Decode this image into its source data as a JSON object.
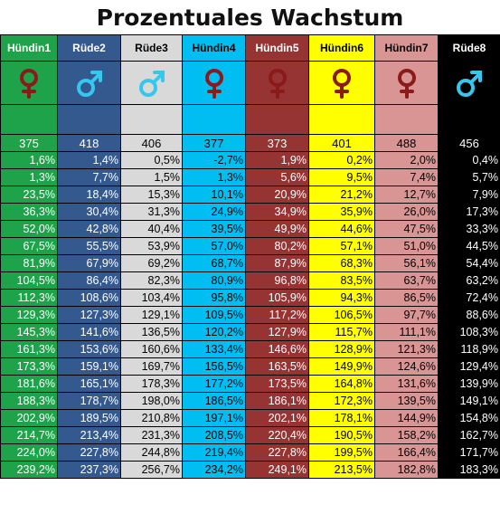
{
  "title": "Prozentuales Wachstum",
  "columns": [
    {
      "name": "Hündin1",
      "sex": "female",
      "bg": "#1fa34a",
      "fg": "#ffffff",
      "symbol_color": "#8b1a1a",
      "start": "375"
    },
    {
      "name": "Rüde2",
      "sex": "male",
      "bg": "#34598f",
      "fg": "#ffffff",
      "symbol_color": "#35c7ee",
      "start": "418"
    },
    {
      "name": "Rüde3",
      "sex": "male",
      "bg": "#d9d9d9",
      "fg": "#000000",
      "symbol_color": "#35c7ee",
      "start": "406"
    },
    {
      "name": "Hündin4",
      "sex": "female",
      "bg": "#00bdf2",
      "fg": "#000000",
      "symbol_color": "#8b1a1a",
      "start": "377"
    },
    {
      "name": "Hündin5",
      "sex": "female",
      "bg": "#963333",
      "fg": "#ffffff",
      "symbol_color": "#8b1a1a",
      "start": "373"
    },
    {
      "name": "Hündin6",
      "sex": "female",
      "bg": "#ffff00",
      "fg": "#000000",
      "symbol_color": "#8b1a1a",
      "start": "401"
    },
    {
      "name": "Hündin7",
      "sex": "female",
      "bg": "#d99594",
      "fg": "#000000",
      "symbol_color": "#8b1a1a",
      "start": "488"
    },
    {
      "name": "Rüde8",
      "sex": "male",
      "bg": "#000000",
      "fg": "#ffffff",
      "symbol_color": "#35c7ee",
      "start": "456"
    }
  ],
  "rows": [
    [
      "1,6%",
      "1,4%",
      "0,5%",
      "-2,7%",
      "1,9%",
      "0,2%",
      "2,0%",
      "0,4%"
    ],
    [
      "1,3%",
      "7,7%",
      "1,5%",
      "1,3%",
      "5,6%",
      "9,5%",
      "7,4%",
      "5,7%"
    ],
    [
      "23,5%",
      "18,4%",
      "15,3%",
      "10,1%",
      "20,9%",
      "21,2%",
      "12,7%",
      "7,9%"
    ],
    [
      "36,3%",
      "30,4%",
      "31,3%",
      "24,9%",
      "34,9%",
      "35,9%",
      "26,0%",
      "17,3%"
    ],
    [
      "52,0%",
      "42,8%",
      "40,4%",
      "39,5%",
      "49,9%",
      "44,6%",
      "47,5%",
      "33,3%"
    ],
    [
      "67,5%",
      "55,5%",
      "53,9%",
      "57,0%",
      "80,2%",
      "57,1%",
      "51,0%",
      "44,5%"
    ],
    [
      "81,9%",
      "67,9%",
      "69,2%",
      "68,7%",
      "87,9%",
      "68,3%",
      "56,1%",
      "54,4%"
    ],
    [
      "104,5%",
      "86,4%",
      "82,3%",
      "80,9%",
      "96,8%",
      "83,5%",
      "63,7%",
      "63,2%"
    ],
    [
      "112,3%",
      "108,6%",
      "103,4%",
      "95,8%",
      "105,9%",
      "94,3%",
      "86,5%",
      "72,4%"
    ],
    [
      "129,3%",
      "127,3%",
      "129,1%",
      "109,5%",
      "117,2%",
      "106,5%",
      "97,7%",
      "88,6%"
    ],
    [
      "145,3%",
      "141,6%",
      "136,5%",
      "120,2%",
      "127,9%",
      "115,7%",
      "111,1%",
      "108,3%"
    ],
    [
      "161,3%",
      "153,6%",
      "160,6%",
      "133,4%",
      "146,6%",
      "128,9%",
      "121,3%",
      "118,9%"
    ],
    [
      "173,3%",
      "159,1%",
      "169,7%",
      "156,5%",
      "163,5%",
      "149,9%",
      "124,6%",
      "129,4%"
    ],
    [
      "181,6%",
      "165,1%",
      "178,3%",
      "177,2%",
      "173,5%",
      "164,8%",
      "131,6%",
      "139,9%"
    ],
    [
      "188,3%",
      "178,7%",
      "198,0%",
      "186,5%",
      "186,1%",
      "172,3%",
      "139,5%",
      "149,1%"
    ],
    [
      "202,9%",
      "189,5%",
      "210,8%",
      "197,1%",
      "202,1%",
      "178,1%",
      "144,9%",
      "154,8%"
    ],
    [
      "214,7%",
      "213,4%",
      "231,3%",
      "208,5%",
      "220,4%",
      "190,5%",
      "158,2%",
      "162,7%"
    ],
    [
      "224,0%",
      "227,8%",
      "244,8%",
      "219,4%",
      "227,8%",
      "199,5%",
      "166,4%",
      "171,7%"
    ],
    [
      "239,2%",
      "237,3%",
      "256,7%",
      "234,2%",
      "249,1%",
      "213,5%",
      "182,8%",
      "183,3%"
    ]
  ]
}
